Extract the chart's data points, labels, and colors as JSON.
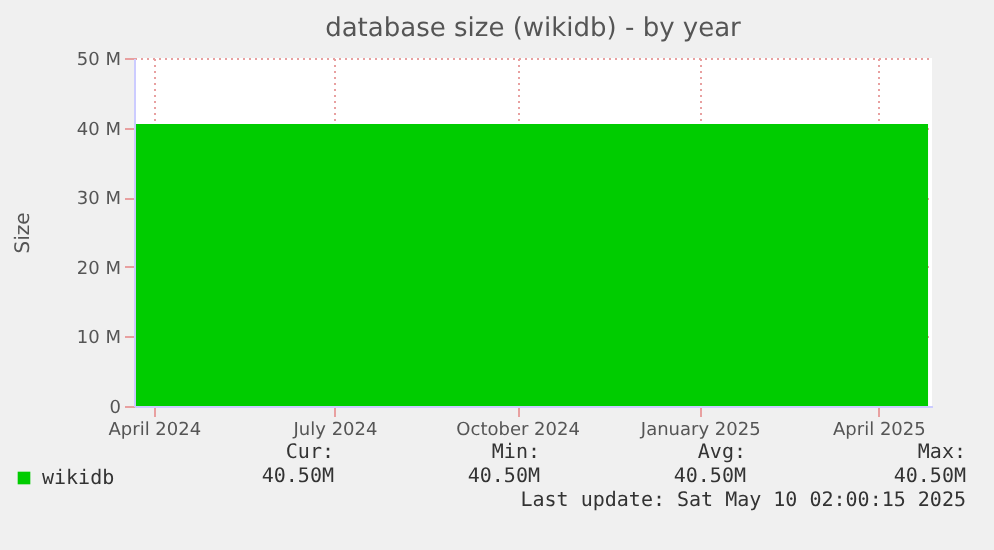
{
  "chart_data": {
    "type": "area",
    "title": "database size (wikidb) - by year",
    "ylabel": "Size",
    "x": [
      "2024-03-23",
      "2025-04-26"
    ],
    "series": [
      {
        "name": "wikidb",
        "color": "#00cc00",
        "values": [
          40.5,
          40.5
        ]
      }
    ],
    "xlim": [
      "2024-03-22",
      "2025-04-28"
    ],
    "xticks": [
      {
        "value": "2024-04-01",
        "label": "April 2024"
      },
      {
        "value": "2024-07-01",
        "label": "July 2024"
      },
      {
        "value": "2024-10-01",
        "label": "October 2024"
      },
      {
        "value": "2025-01-01",
        "label": "January 2025"
      },
      {
        "value": "2025-04-01",
        "label": "April 2025"
      }
    ],
    "ylim": [
      0,
      50
    ],
    "yticks": [
      {
        "value": 0,
        "label": "0"
      },
      {
        "value": 10,
        "label": "10 M"
      },
      {
        "value": 20,
        "label": "20 M"
      },
      {
        "value": 30,
        "label": "30 M"
      },
      {
        "value": 40,
        "label": "40 M"
      },
      {
        "value": 50,
        "label": "50 M"
      }
    ],
    "grid": true,
    "legend": "bottom",
    "annotations": [
      "Cur:",
      "Min:",
      "Avg:",
      "Max:",
      "40.50M",
      "40.50M",
      "40.50M",
      "40.50M",
      "Last update: Sat May 10 02:00:15 2025"
    ]
  }
}
